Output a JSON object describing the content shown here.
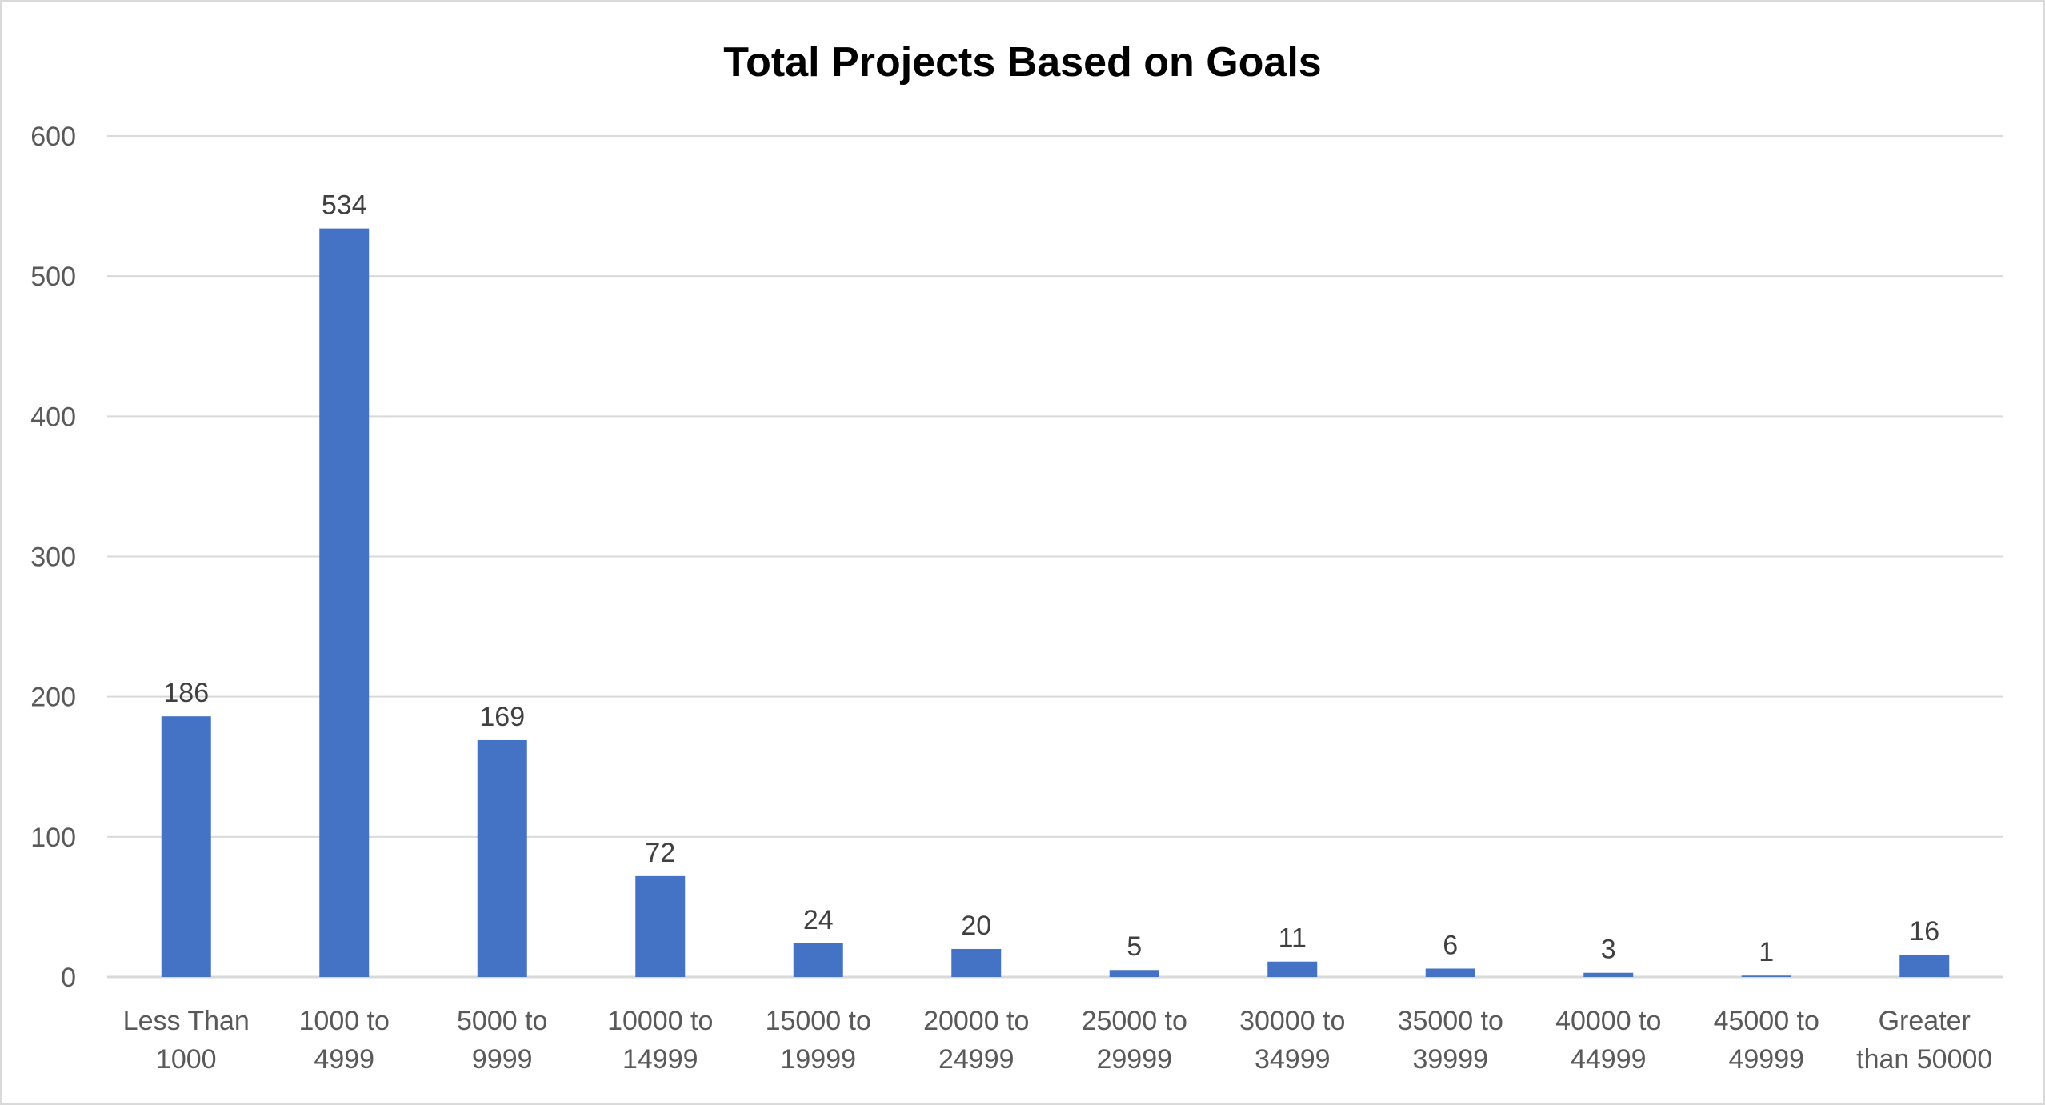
{
  "chart_data": {
    "type": "bar",
    "title": "Total Projects Based on Goals",
    "xlabel": "",
    "ylabel": "",
    "categories": [
      [
        "Less Than",
        "1000"
      ],
      [
        "1000 to",
        "4999"
      ],
      [
        "5000 to",
        "9999"
      ],
      [
        "10000 to",
        "14999"
      ],
      [
        "15000 to",
        "19999"
      ],
      [
        "20000 to",
        "24999"
      ],
      [
        "25000 to",
        "29999"
      ],
      [
        "30000 to",
        "34999"
      ],
      [
        "35000 to",
        "39999"
      ],
      [
        "40000 to",
        "44999"
      ],
      [
        "45000 to",
        "49999"
      ],
      [
        "Greater",
        "than 50000"
      ]
    ],
    "values": [
      186,
      534,
      169,
      72,
      24,
      20,
      5,
      11,
      6,
      3,
      1,
      16
    ],
    "ylim": [
      0,
      600
    ],
    "yticks": [
      0,
      100,
      200,
      300,
      400,
      500,
      600
    ],
    "grid": true,
    "legend": "none",
    "data_labels": true,
    "colors": {
      "bar": "#4472C4",
      "grid": "#D9D9D9",
      "border": "#D9D9D9"
    }
  }
}
